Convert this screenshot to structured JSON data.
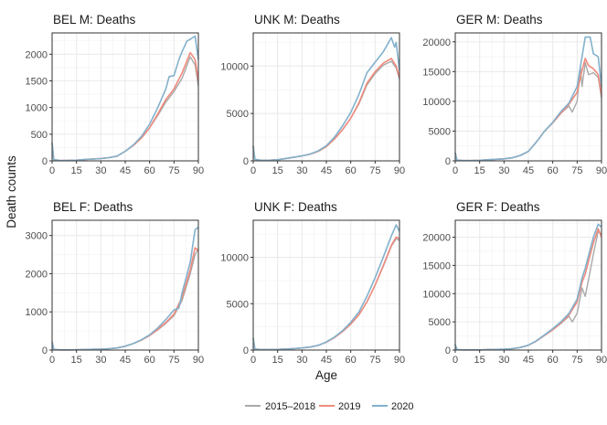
{
  "chart_data": {
    "type": "line",
    "xlabel": "Age",
    "ylabel": "Death counts",
    "legend": {
      "position": "bottom",
      "entries": [
        {
          "name": "2015–2018",
          "color": "#a9a9a9"
        },
        {
          "name": "2019",
          "color": "#f08a7c"
        },
        {
          "name": "2020",
          "color": "#82b1cc"
        }
      ]
    },
    "panels": [
      {
        "id": "bel-m",
        "title": "BEL M: Deaths",
        "xlim": [
          0,
          90
        ],
        "ylim": [
          0,
          2400
        ],
        "xticks": [
          0,
          15,
          30,
          45,
          60,
          75,
          90
        ],
        "yticks": [
          0,
          500,
          1000,
          1500,
          2000
        ],
        "series": [
          {
            "name": "2015–2018",
            "x": [
              0,
              1,
              5,
              10,
              15,
              20,
              25,
              30,
              35,
              40,
              45,
              50,
              55,
              60,
              65,
              70,
              75,
              80,
              85,
              88,
              90
            ],
            "y": [
              320,
              22,
              6,
              8,
              12,
              25,
              35,
              45,
              60,
              90,
              180,
              290,
              430,
              620,
              850,
              1100,
              1300,
              1550,
              1950,
              1800,
              1400
            ]
          },
          {
            "name": "2019",
            "x": [
              0,
              1,
              5,
              10,
              15,
              20,
              25,
              30,
              35,
              40,
              45,
              50,
              55,
              60,
              65,
              70,
              75,
              80,
              85,
              88,
              90
            ],
            "y": [
              330,
              22,
              6,
              8,
              12,
              25,
              35,
              45,
              60,
              90,
              180,
              290,
              430,
              620,
              880,
              1150,
              1350,
              1650,
              2030,
              1900,
              1500
            ]
          },
          {
            "name": "2020",
            "x": [
              0,
              1,
              5,
              10,
              15,
              20,
              25,
              30,
              35,
              40,
              45,
              50,
              55,
              60,
              65,
              70,
              72,
              75,
              78,
              80,
              83,
              85,
              88,
              90
            ],
            "y": [
              340,
              22,
              6,
              8,
              12,
              25,
              35,
              45,
              60,
              90,
              180,
              300,
              460,
              690,
              1000,
              1350,
              1580,
              1600,
              1900,
              2050,
              2250,
              2280,
              2340,
              1900
            ]
          }
        ]
      },
      {
        "id": "unk-m",
        "title": "UNK M: Deaths",
        "xlim": [
          0,
          90
        ],
        "ylim": [
          0,
          13500
        ],
        "xticks": [
          0,
          15,
          30,
          45,
          60,
          75,
          90
        ],
        "yticks": [
          0,
          5000,
          10000
        ],
        "series": [
          {
            "name": "2015–2018",
            "x": [
              0,
              1,
              5,
              10,
              15,
              20,
              25,
              30,
              35,
              40,
              45,
              50,
              55,
              60,
              65,
              70,
              75,
              80,
              85,
              88,
              90
            ],
            "y": [
              1500,
              150,
              60,
              70,
              120,
              250,
              380,
              520,
              700,
              1000,
              1500,
              2300,
              3300,
              4500,
              6000,
              8000,
              9200,
              10100,
              10500,
              9800,
              8600
            ]
          },
          {
            "name": "2019",
            "x": [
              0,
              1,
              5,
              10,
              15,
              20,
              25,
              30,
              35,
              40,
              45,
              50,
              55,
              60,
              65,
              70,
              75,
              80,
              85,
              88,
              90
            ],
            "y": [
              1550,
              150,
              60,
              70,
              120,
              250,
              380,
              520,
              700,
              1000,
              1500,
              2300,
              3300,
              4500,
              6100,
              8200,
              9400,
              10300,
              10800,
              10000,
              8800
            ]
          },
          {
            "name": "2020",
            "x": [
              0,
              1,
              5,
              10,
              15,
              20,
              25,
              30,
              35,
              40,
              45,
              50,
              55,
              60,
              65,
              70,
              75,
              80,
              83,
              85,
              87,
              88,
              90
            ],
            "y": [
              1600,
              150,
              60,
              70,
              120,
              250,
              380,
              520,
              720,
              1050,
              1600,
              2500,
              3700,
              5100,
              7000,
              9300,
              10400,
              11500,
              12400,
              13000,
              12000,
              12500,
              9500
            ]
          }
        ]
      },
      {
        "id": "ger-m",
        "title": "GER M: Deaths",
        "xlim": [
          0,
          90
        ],
        "ylim": [
          0,
          21500
        ],
        "xticks": [
          0,
          15,
          30,
          45,
          60,
          75,
          90
        ],
        "yticks": [
          0,
          5000,
          10000,
          15000,
          20000
        ],
        "series": [
          {
            "name": "2015–2018",
            "x": [
              0,
              1,
              5,
              10,
              15,
              20,
              25,
              30,
              35,
              40,
              45,
              50,
              55,
              60,
              65,
              70,
              72,
              75,
              77,
              78,
              80,
              82,
              85,
              88,
              90
            ],
            "y": [
              1300,
              120,
              40,
              50,
              90,
              180,
              260,
              340,
              500,
              900,
              1600,
              3200,
              5000,
              6400,
              8000,
              9200,
              8200,
              10000,
              15800,
              12500,
              16500,
              14500,
              14800,
              14000,
              10500
            ]
          },
          {
            "name": "2019",
            "x": [
              0,
              1,
              5,
              10,
              15,
              20,
              25,
              30,
              35,
              40,
              45,
              50,
              55,
              60,
              65,
              70,
              75,
              78,
              80,
              82,
              85,
              88,
              90
            ],
            "y": [
              1350,
              120,
              40,
              50,
              90,
              180,
              260,
              340,
              500,
              900,
              1600,
              3200,
              5000,
              6400,
              8000,
              9500,
              11500,
              15200,
              17200,
              16000,
              15500,
              14500,
              11000
            ]
          },
          {
            "name": "2020",
            "x": [
              0,
              1,
              5,
              10,
              15,
              20,
              25,
              30,
              35,
              40,
              45,
              50,
              55,
              60,
              65,
              70,
              75,
              78,
              80,
              83,
              85,
              88,
              90
            ],
            "y": [
              1400,
              120,
              40,
              50,
              90,
              180,
              260,
              340,
              500,
              900,
              1600,
              3200,
              5000,
              6500,
              8300,
              9700,
              12500,
              17500,
              20800,
              20800,
              18000,
              17500,
              12500
            ]
          }
        ]
      },
      {
        "id": "bel-f",
        "title": "BEL F: Deaths",
        "xlim": [
          0,
          90
        ],
        "ylim": [
          0,
          3400
        ],
        "xticks": [
          0,
          15,
          30,
          45,
          60,
          75,
          90
        ],
        "yticks": [
          0,
          1000,
          2000,
          3000
        ],
        "series": [
          {
            "name": "2015–2018",
            "x": [
              0,
              1,
              5,
              10,
              15,
              20,
              25,
              30,
              35,
              40,
              45,
              50,
              55,
              60,
              65,
              70,
              75,
              80,
              85,
              88,
              90
            ],
            "y": [
              200,
              15,
              5,
              5,
              8,
              12,
              18,
              25,
              35,
              55,
              100,
              170,
              260,
              380,
              530,
              700,
              900,
              1300,
              2000,
              2500,
              2650
            ]
          },
          {
            "name": "2019",
            "x": [
              0,
              1,
              5,
              10,
              15,
              20,
              25,
              30,
              35,
              40,
              45,
              50,
              55,
              60,
              65,
              70,
              75,
              80,
              85,
              88,
              90
            ],
            "y": [
              210,
              15,
              5,
              5,
              8,
              12,
              18,
              25,
              35,
              55,
              100,
              170,
              260,
              380,
              540,
              720,
              940,
              1380,
              2100,
              2680,
              2600
            ]
          },
          {
            "name": "2020",
            "x": [
              0,
              1,
              5,
              10,
              15,
              20,
              25,
              30,
              35,
              40,
              45,
              50,
              55,
              60,
              65,
              70,
              75,
              78,
              80,
              85,
              88,
              90
            ],
            "y": [
              220,
              15,
              5,
              5,
              8,
              12,
              18,
              25,
              35,
              55,
              100,
              170,
              270,
              400,
              580,
              800,
              1050,
              1100,
              1500,
              2300,
              3150,
              3220
            ]
          }
        ]
      },
      {
        "id": "unk-f",
        "title": "UNK F: Deaths",
        "xlim": [
          0,
          90
        ],
        "ylim": [
          0,
          14000
        ],
        "xticks": [
          0,
          15,
          30,
          45,
          60,
          75,
          90
        ],
        "yticks": [
          0,
          5000,
          10000
        ],
        "series": [
          {
            "name": "2015–2018",
            "x": [
              0,
              1,
              5,
              10,
              15,
              20,
              25,
              30,
              35,
              40,
              45,
              50,
              55,
              60,
              65,
              70,
              75,
              80,
              85,
              88,
              90
            ],
            "y": [
              1200,
              110,
              45,
              50,
              70,
              110,
              160,
              230,
              330,
              500,
              850,
              1350,
              2000,
              2800,
              3800,
              5200,
              7000,
              9000,
              11200,
              12000,
              11800
            ]
          },
          {
            "name": "2019",
            "x": [
              0,
              1,
              5,
              10,
              15,
              20,
              25,
              30,
              35,
              40,
              45,
              50,
              55,
              60,
              65,
              70,
              75,
              80,
              85,
              88,
              90
            ],
            "y": [
              1250,
              110,
              45,
              50,
              70,
              110,
              160,
              230,
              330,
              500,
              850,
              1350,
              2000,
              2800,
              3800,
              5200,
              7000,
              9100,
              11300,
              12200,
              12000
            ]
          },
          {
            "name": "2020",
            "x": [
              0,
              1,
              5,
              10,
              15,
              20,
              25,
              30,
              35,
              40,
              45,
              50,
              55,
              60,
              65,
              70,
              75,
              80,
              85,
              88,
              90
            ],
            "y": [
              1300,
              110,
              45,
              50,
              70,
              110,
              160,
              230,
              330,
              500,
              880,
              1400,
              2100,
              3000,
              4100,
              5800,
              7800,
              10000,
              12300,
              13500,
              12800
            ]
          }
        ]
      },
      {
        "id": "ger-f",
        "title": "GER F: Deaths",
        "xlim": [
          0,
          90
        ],
        "ylim": [
          0,
          23000
        ],
        "xticks": [
          0,
          15,
          30,
          45,
          60,
          75,
          90
        ],
        "yticks": [
          0,
          5000,
          10000,
          15000,
          20000
        ],
        "series": [
          {
            "name": "2015–2018",
            "x": [
              0,
              1,
              5,
              10,
              15,
              20,
              25,
              30,
              35,
              40,
              45,
              50,
              55,
              60,
              65,
              70,
              72,
              75,
              78,
              80,
              83,
              85,
              88,
              90
            ],
            "y": [
              900,
              80,
              30,
              30,
              40,
              60,
              90,
              150,
              250,
              450,
              850,
              1600,
              2600,
              3600,
              4700,
              6000,
              5000,
              6500,
              11000,
              9500,
              14000,
              17000,
              21000,
              20500
            ]
          },
          {
            "name": "2019",
            "x": [
              0,
              1,
              5,
              10,
              15,
              20,
              25,
              30,
              35,
              40,
              45,
              50,
              55,
              60,
              65,
              70,
              75,
              78,
              80,
              85,
              88,
              90
            ],
            "y": [
              950,
              80,
              30,
              30,
              40,
              60,
              90,
              150,
              250,
              450,
              850,
              1600,
              2600,
              3600,
              4800,
              6200,
              8500,
              12000,
              13500,
              19000,
              21500,
              20000
            ]
          },
          {
            "name": "2020",
            "x": [
              0,
              1,
              5,
              10,
              15,
              20,
              25,
              30,
              35,
              40,
              45,
              50,
              55,
              60,
              65,
              70,
              75,
              78,
              80,
              85,
              88,
              90
            ],
            "y": [
              1000,
              80,
              30,
              30,
              40,
              60,
              90,
              150,
              250,
              450,
              870,
              1650,
              2700,
              3800,
              5000,
              6500,
              9000,
              12800,
              14500,
              20000,
              22300,
              21800
            ]
          }
        ]
      }
    ]
  }
}
